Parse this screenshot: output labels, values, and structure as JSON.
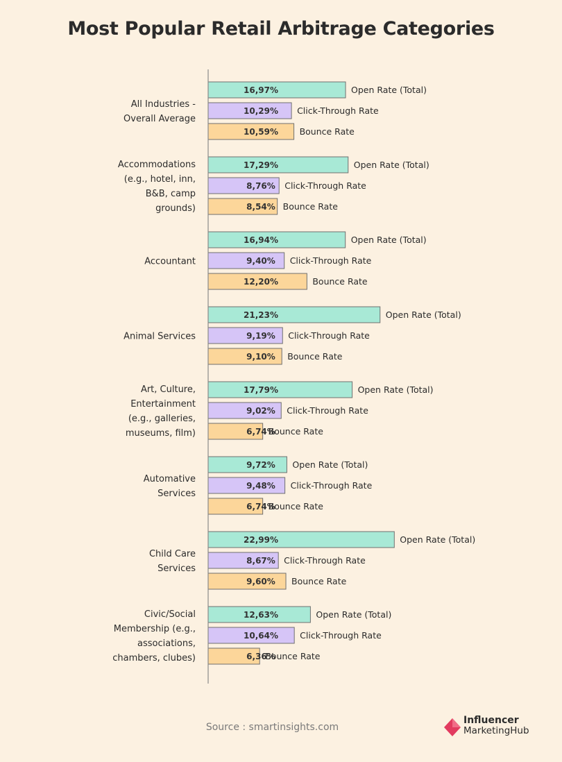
{
  "title": "Most Popular Retail Arbitrage Categories",
  "source": "Source : smartinsights.com",
  "logo": {
    "line1": "Influencer",
    "line2": "MarketingHub",
    "color": "#e23b5f"
  },
  "colors": {
    "open": "#a8e9d6",
    "click": "#d6c5f7",
    "bounce": "#fcd69a",
    "stroke": "#6f6f6f",
    "axis": "#8a8a8a"
  },
  "chart_data": {
    "type": "bar",
    "orientation": "horizontal",
    "title": "Most Popular Retail Arbitrage Categories",
    "value_format": "percent, comma decimal",
    "series_names": [
      "Open Rate (Total)",
      "Click-Through Rate",
      "Bounce Rate"
    ],
    "groups": [
      {
        "label": [
          "All Industries -",
          "Overall Average"
        ],
        "values": [
          16.97,
          10.29,
          10.59
        ],
        "labels": [
          "16,97%",
          "10,29%",
          "10,59%"
        ]
      },
      {
        "label": [
          "Accommodations",
          "(e.g., hotel, inn,",
          "B&B, camp",
          "grounds)"
        ],
        "values": [
          17.29,
          8.76,
          8.54
        ],
        "labels": [
          "17,29%",
          "8,76%",
          "8,54%"
        ]
      },
      {
        "label": [
          "Accountant"
        ],
        "values": [
          16.94,
          9.4,
          12.2
        ],
        "labels": [
          "16,94%",
          "9,40%",
          "12,20%"
        ]
      },
      {
        "label": [
          "Animal Services"
        ],
        "values": [
          21.23,
          9.19,
          9.1
        ],
        "labels": [
          "21,23%",
          "9,19%",
          "9,10%"
        ]
      },
      {
        "label": [
          "Art, Culture,",
          "Entertainment",
          "(e.g., galleries,",
          "museums, film)"
        ],
        "values": [
          17.79,
          9.02,
          6.74
        ],
        "labels": [
          "17,79%",
          "9,02%",
          "6,74%"
        ]
      },
      {
        "label": [
          "Automative",
          "Services"
        ],
        "values": [
          9.72,
          9.48,
          6.74
        ],
        "labels": [
          "9,72%",
          "9,48%",
          "6,74%"
        ]
      },
      {
        "label": [
          "Child Care",
          "Services"
        ],
        "values": [
          22.99,
          8.67,
          9.6
        ],
        "labels": [
          "22,99%",
          "8,67%",
          "9,60%"
        ]
      },
      {
        "label": [
          "Civic/Social",
          "Membership (e.g.,",
          "associations,",
          "chambers, clubes)"
        ],
        "values": [
          12.63,
          10.64,
          6.36
        ],
        "labels": [
          "12,63%",
          "10,64%",
          "6,36%"
        ]
      }
    ]
  }
}
